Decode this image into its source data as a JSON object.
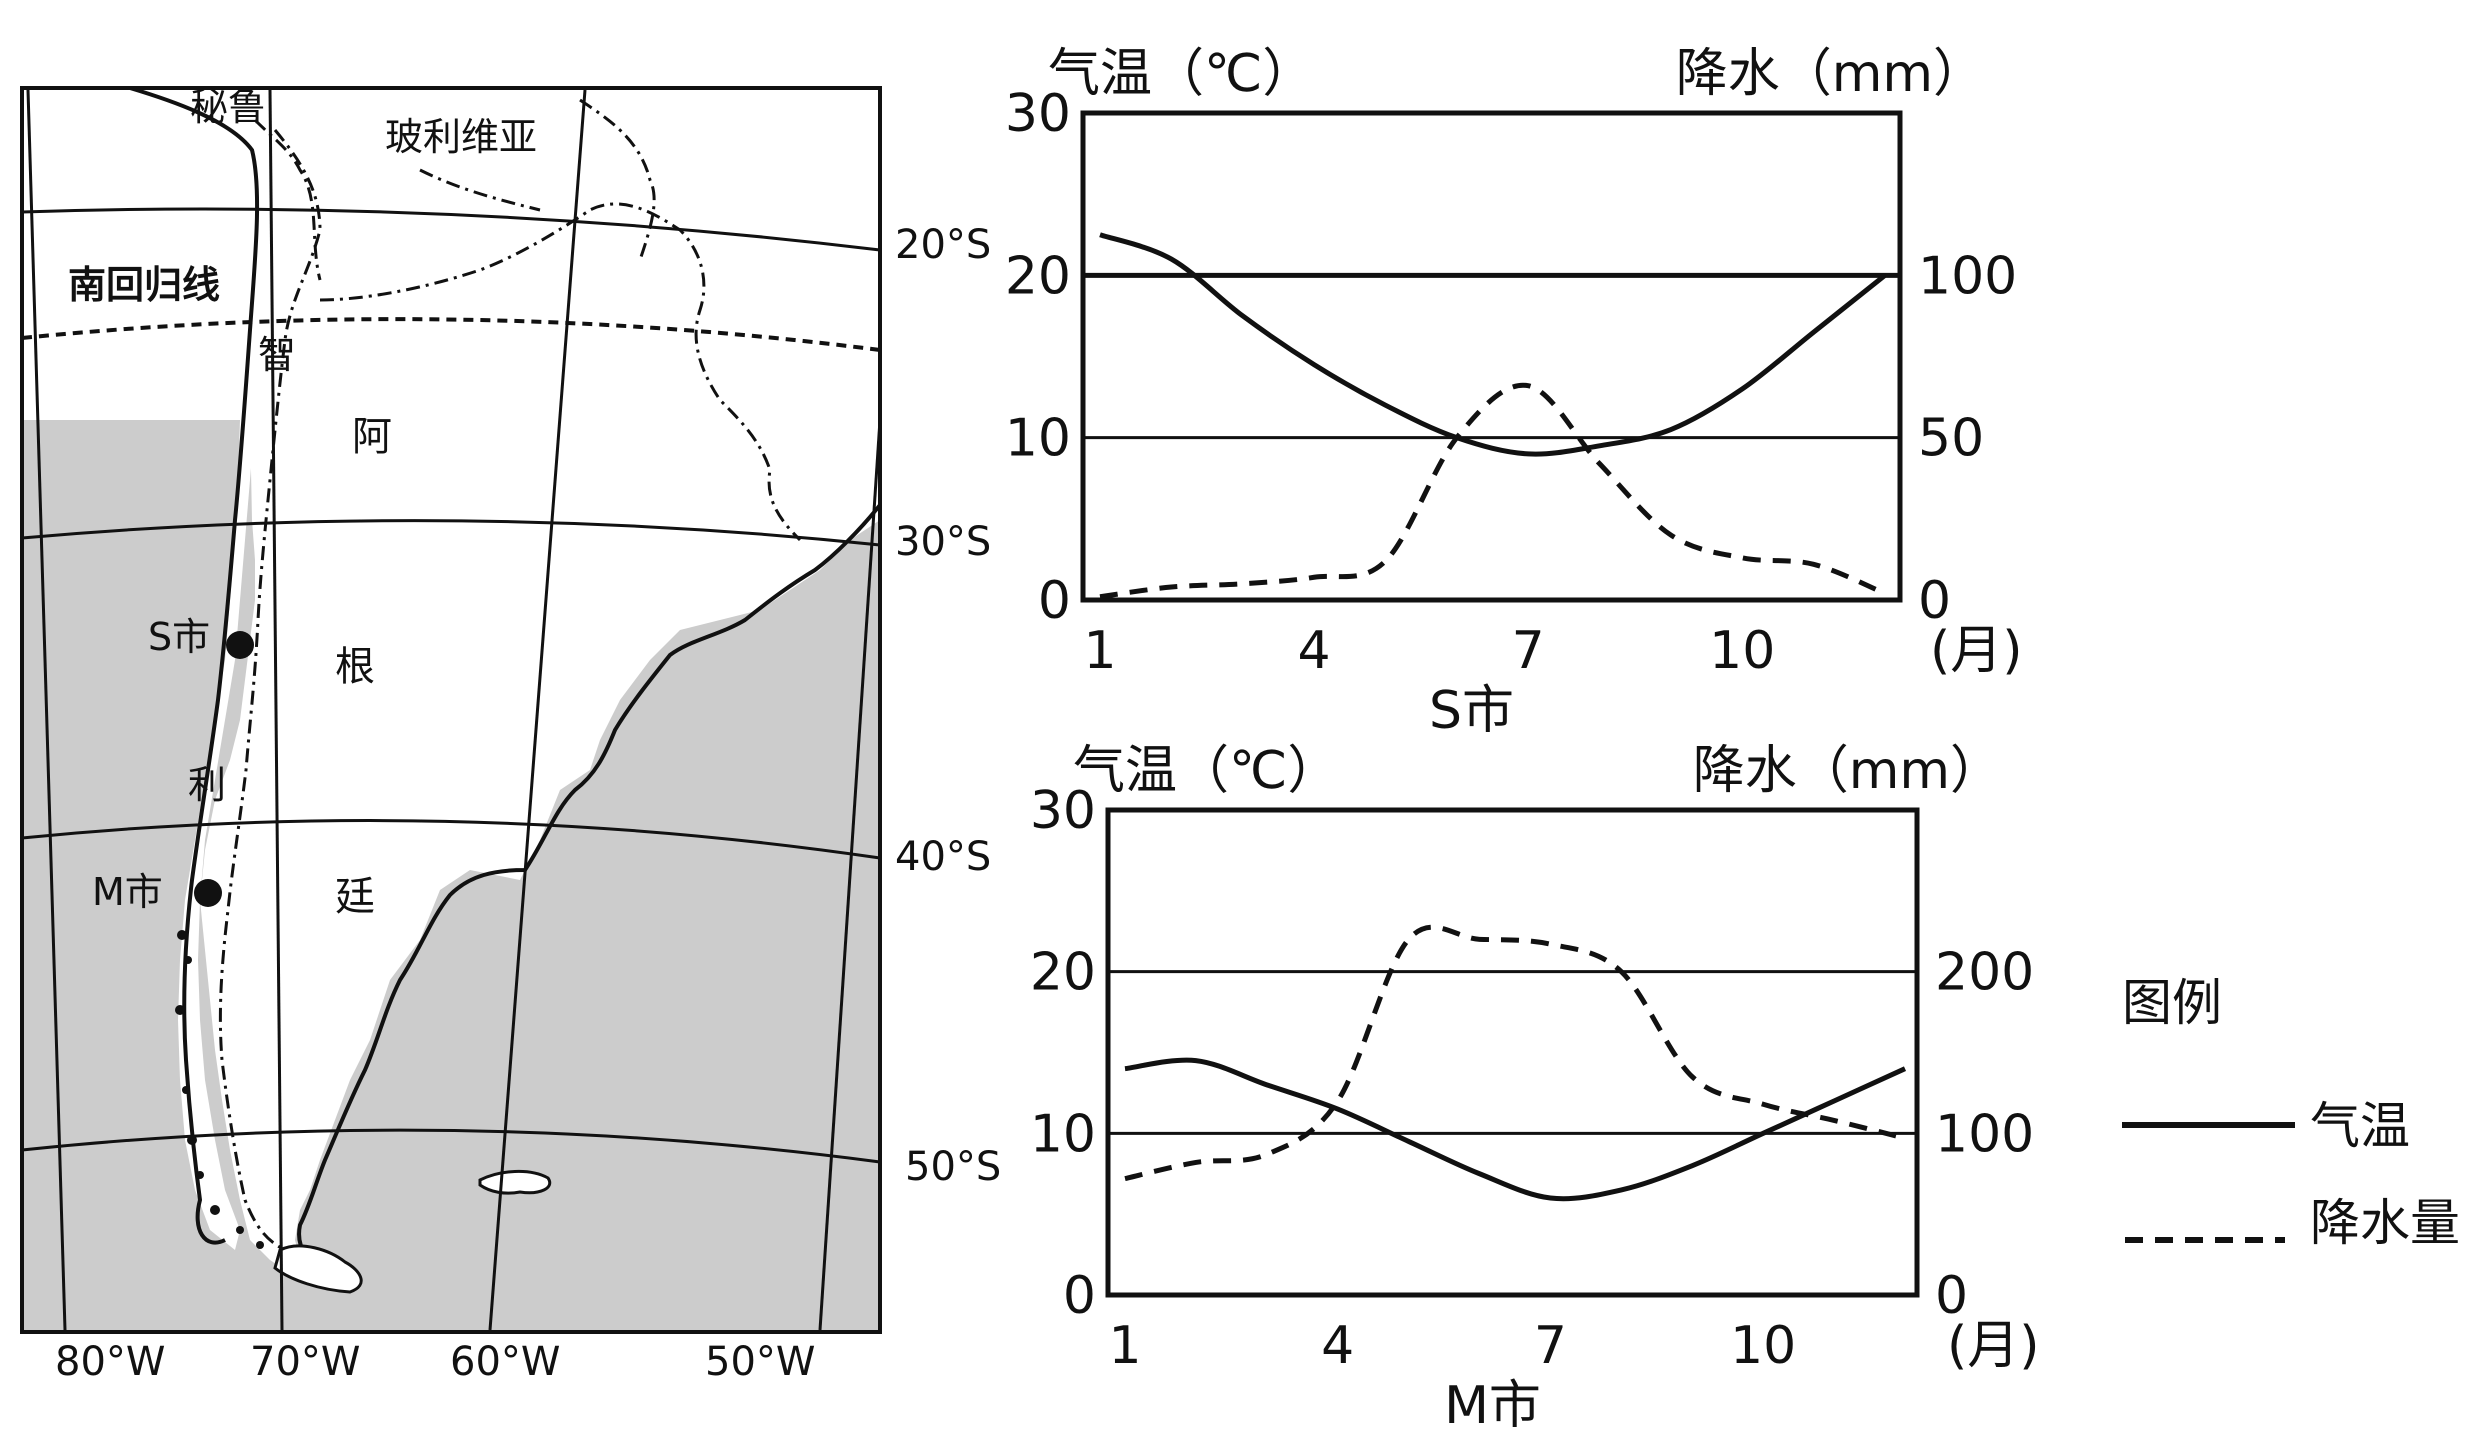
{
  "map": {
    "countries": [
      "秘鲁",
      "玻利维亚",
      "智",
      "利",
      "阿",
      "根",
      "廷"
    ],
    "tropic_label": "南回归线",
    "lat_labels": [
      "20°S",
      "30°S",
      "40°S",
      "50°S"
    ],
    "lon_labels": [
      "80°W",
      "70°W",
      "60°W",
      "50°W"
    ],
    "cities": [
      "S市",
      "M市"
    ]
  },
  "chart_data": [
    {
      "type": "line",
      "title": "S市",
      "x": [
        1,
        2,
        3,
        4,
        5,
        6,
        7,
        8,
        9,
        10,
        11,
        12
      ],
      "xticks": [
        "1",
        "4",
        "7",
        "10"
      ],
      "xunit": "(月)",
      "y_left_label": "气温（℃）",
      "y_right_label": "降水（mm）",
      "y_left_ticks": [
        "0",
        "10",
        "20",
        "30"
      ],
      "y_right_ticks": [
        "0",
        "50",
        "100"
      ],
      "ylim_left": [
        0,
        30
      ],
      "ylim_right": [
        0,
        150
      ],
      "series": [
        {
          "name": "气温",
          "axis": "left",
          "style": "solid",
          "values": [
            22.5,
            21,
            17.5,
            14.5,
            12,
            10,
            9,
            9.5,
            10.5,
            13,
            16.5,
            20
          ]
        },
        {
          "name": "降水量",
          "axis": "right",
          "style": "dashed",
          "values": [
            1,
            4,
            5,
            7,
            12,
            50,
            66,
            42,
            20,
            13,
            11,
            2
          ]
        }
      ]
    },
    {
      "type": "line",
      "title": "M市",
      "x": [
        1,
        2,
        3,
        4,
        5,
        6,
        7,
        8,
        9,
        10,
        11,
        12
      ],
      "xticks": [
        "1",
        "4",
        "7",
        "10"
      ],
      "xunit": "(月)",
      "y_left_label": "气温（℃）",
      "y_right_label": "降水（mm）",
      "y_left_ticks": [
        "0",
        "10",
        "20",
        "30"
      ],
      "y_right_ticks": [
        "0",
        "100",
        "200"
      ],
      "ylim_left": [
        0,
        30
      ],
      "ylim_right": [
        0,
        300
      ],
      "series": [
        {
          "name": "气温",
          "axis": "left",
          "style": "solid",
          "values": [
            14,
            14.5,
            13,
            11.5,
            9.5,
            7.5,
            6,
            6.5,
            8,
            10,
            12,
            14
          ]
        },
        {
          "name": "降水量",
          "axis": "right",
          "style": "dashed",
          "values": [
            72,
            82,
            87,
            120,
            220,
            220,
            217,
            200,
            135,
            118,
            108,
            97
          ]
        }
      ]
    }
  ],
  "legend": {
    "title": "图例",
    "temp_label": "气温",
    "precip_label": "降水量"
  },
  "colors": {
    "line": "#111111",
    "land_shade": "#cccccc"
  }
}
